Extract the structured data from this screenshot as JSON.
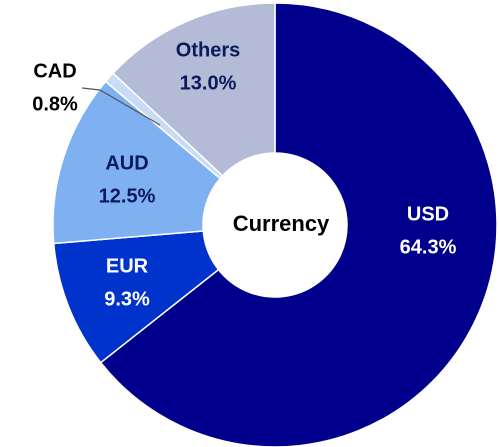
{
  "chart_data": {
    "type": "donut",
    "center_label": "Currency",
    "categories": [
      "USD",
      "EUR",
      "AUD",
      "CAD",
      "Others"
    ],
    "values": [
      64.3,
      9.3,
      12.5,
      0.8,
      13.0
    ],
    "value_labels": [
      "64.3%",
      "9.3%",
      "12.5%",
      "0.8%",
      "13.0%"
    ],
    "colors": [
      "#00008c",
      "#0033cc",
      "#7fb0f2",
      "#c9dcf6",
      "#b3bbd6"
    ]
  }
}
